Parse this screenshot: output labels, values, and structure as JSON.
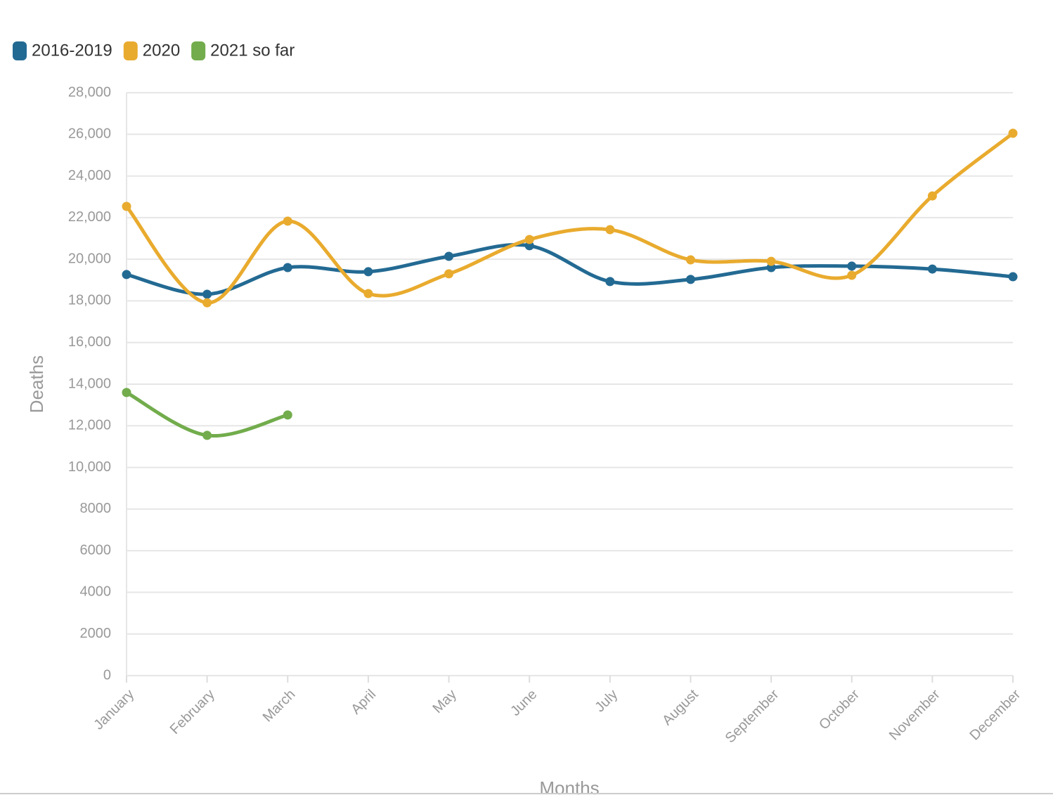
{
  "chart_data": {
    "type": "line",
    "x_label": "Months",
    "y_label": "Deaths",
    "categories": [
      "January",
      "February",
      "March",
      "April",
      "May",
      "June",
      "July",
      "August",
      "September",
      "October",
      "November",
      "December"
    ],
    "series": [
      {
        "name": "2016-2019",
        "color": "#236a93",
        "values": [
          19265,
          18320,
          19600,
          19400,
          20140,
          20650,
          18930,
          19030,
          19600,
          19670,
          19530,
          19160
        ]
      },
      {
        "name": "2020",
        "color": "#e9ab2e",
        "values": [
          22540,
          17910,
          21830,
          18350,
          19300,
          20950,
          21420,
          19970,
          19900,
          19230,
          23040,
          26050
        ]
      },
      {
        "name": "2021 so far",
        "color": "#72ac4c",
        "values": [
          13600,
          11540,
          12520,
          null,
          null,
          null,
          null,
          null,
          null,
          null,
          null,
          null
        ]
      }
    ],
    "ylim": [
      0,
      28000
    ],
    "yticks": [
      0,
      2000,
      4000,
      6000,
      8000,
      {
        "value": 10000,
        "label": "10,000"
      },
      {
        "value": 12000,
        "label": "12,000"
      },
      {
        "value": 14000,
        "label": "14,000"
      },
      {
        "value": 16000,
        "label": "16,000"
      },
      {
        "value": 18000,
        "label": "18,000"
      },
      {
        "value": 20000,
        "label": "20,000"
      },
      {
        "value": 22000,
        "label": "22,000"
      },
      {
        "value": 24000,
        "label": "24,000"
      },
      {
        "value": 26000,
        "label": "26,000"
      },
      {
        "value": 28000,
        "label": "28,000"
      }
    ],
    "grid": true,
    "legend": "top-left"
  }
}
